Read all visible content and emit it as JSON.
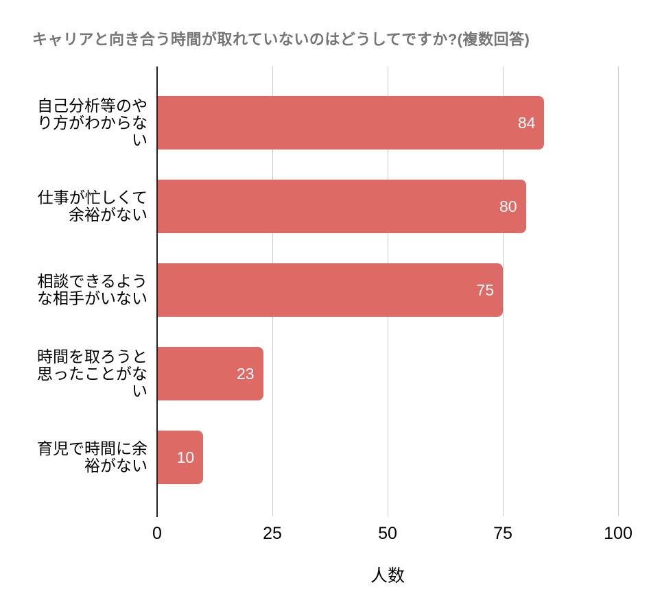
{
  "chart_data": {
    "type": "bar",
    "orientation": "horizontal",
    "title": "キャリアと向き合う時間が取れていないのはどうしてですか?(複数回答)",
    "xlabel": "人数",
    "xlim": [
      0,
      100
    ],
    "xticks": [
      0,
      25,
      50,
      75,
      100
    ],
    "grid": "vertical-only",
    "legend": "none",
    "bar_color": "#DD6A64",
    "value_label_color": "#FFFFFF",
    "title_color": "#757575",
    "axis_line_color": "#212121",
    "gridline_color": "#CCCCCC",
    "categories": [
      "自己分析等のやり方がわからない",
      "仕事が忙しくて余裕がない",
      "相談できるような相手がいない",
      "時間を取ろうと思ったことがない",
      "育児で時間に余裕がない"
    ],
    "values": [
      84,
      80,
      75,
      23,
      10
    ],
    "rows": [
      {
        "label": "自己分析等のやり方がわからない",
        "label_lines": [
          "自己分析等のや",
          "り方がわからな",
          "い"
        ],
        "value": 84
      },
      {
        "label": "仕事が忙しくて余裕がない",
        "label_lines": [
          "仕事が忙しくて",
          "余裕がない"
        ],
        "value": 80
      },
      {
        "label": "相談できるような相手がいない",
        "label_lines": [
          "相談できるよう",
          "な相手がいない"
        ],
        "value": 75
      },
      {
        "label": "時間を取ろうと思ったことがない",
        "label_lines": [
          "時間を取ろうと",
          "思ったことがな",
          "い"
        ],
        "value": 23
      },
      {
        "label": "育児で時間に余裕がない",
        "label_lines": [
          "育児で時間に余",
          "裕がない"
        ],
        "value": 10
      }
    ]
  }
}
